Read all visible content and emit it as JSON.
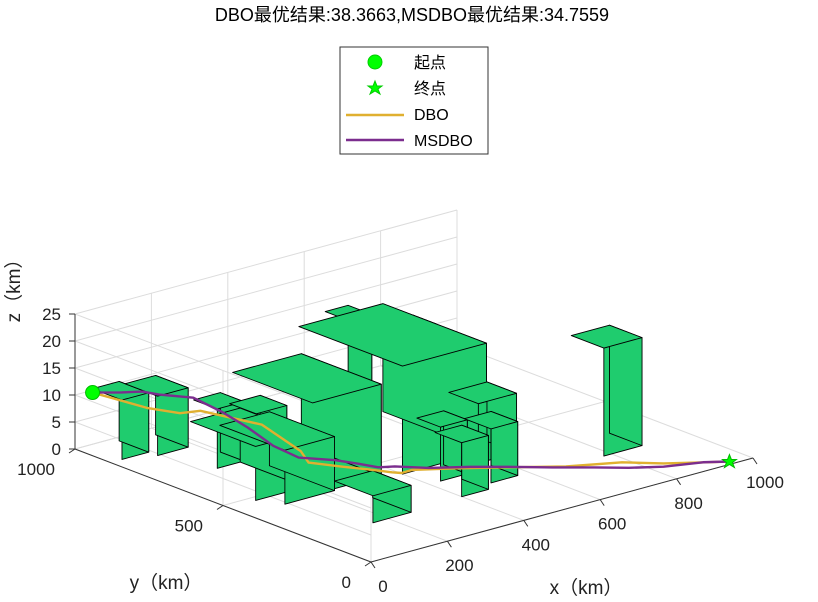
{
  "chart_data": {
    "type": "3d-line",
    "title": "DBO最优结果:38.3663,MSDBO最优结果:34.7559",
    "xlabel": "x（km）",
    "ylabel": "y（km）",
    "zlabel": "z（km）",
    "xlim": [
      0,
      1000
    ],
    "ylim": [
      0,
      1000
    ],
    "zlim": [
      0,
      25
    ],
    "x_ticks": [
      "0",
      "200",
      "400",
      "600",
      "800",
      "1000"
    ],
    "y_ticks": [
      "0",
      "500",
      "1000"
    ],
    "z_ticks": [
      "0",
      "5",
      "10",
      "15",
      "20",
      "25"
    ],
    "grid": true,
    "legend_position": "top-center",
    "legend": [
      "起点",
      "终点",
      "DBO",
      "MSDBO"
    ],
    "colors": {
      "start": "#00ff00",
      "end": "#00ff00",
      "dbo": "#e0b030",
      "msdbo": "#7b2d8e",
      "building": "#1fcc6e"
    },
    "start_point": [
      15,
      960,
      11
    ],
    "end_point": [
      950,
      15,
      0
    ],
    "buildings": [
      {
        "x": [
          30,
          100
        ],
        "y": [
          880,
          980
        ],
        "h": 11
      },
      {
        "x": [
          100,
          180
        ],
        "y": [
          850,
          960
        ],
        "h": 11
      },
      {
        "x": [
          140,
          210
        ],
        "y": [
          700,
          780
        ],
        "h": 11
      },
      {
        "x": [
          180,
          260
        ],
        "y": [
          620,
          710
        ],
        "h": 11
      },
      {
        "x": [
          70,
          200
        ],
        "y": [
          480,
          700
        ],
        "h": 10
      },
      {
        "x": [
          100,
          230
        ],
        "y": [
          420,
          640
        ],
        "h": 10
      },
      {
        "x": [
          180,
          360
        ],
        "y": [
          430,
          700
        ],
        "h": 17
      },
      {
        "x": [
          160,
          260
        ],
        "y": [
          200,
          330
        ],
        "h": 5
      },
      {
        "x": [
          400,
          620
        ],
        "y": [
          410,
          760
        ],
        "h": 20
      },
      {
        "x": [
          500,
          560
        ],
        "y": [
          720,
          800
        ],
        "h": 20
      },
      {
        "x": [
          550,
          620
        ],
        "y": [
          580,
          660
        ],
        "h": 20
      },
      {
        "x": [
          560,
          660
        ],
        "y": [
          360,
          460
        ],
        "h": 11
      },
      {
        "x": [
          430,
          500
        ],
        "y": [
          320,
          400
        ],
        "h": 10
      },
      {
        "x": [
          400,
          470
        ],
        "y": [
          210,
          300
        ],
        "h": 10
      },
      {
        "x": [
          500,
          570
        ],
        "y": [
          240,
          330
        ],
        "h": 10
      },
      {
        "x": [
          780,
          880
        ],
        "y": [
          220,
          330
        ],
        "h": 20
      }
    ],
    "series": [
      {
        "name": "DBO",
        "color": "#e0b030",
        "points": [
          [
            15,
            960,
            11
          ],
          [
            80,
            860,
            9
          ],
          [
            120,
            800,
            8.5
          ],
          [
            150,
            770,
            9
          ],
          [
            210,
            640,
            8
          ],
          [
            230,
            600,
            6
          ],
          [
            250,
            560,
            4
          ],
          [
            255,
            540,
            2.2
          ],
          [
            300,
            480,
            1.8
          ],
          [
            340,
            450,
            1.2
          ],
          [
            380,
            420,
            0.5
          ],
          [
            390,
            400,
            0.6
          ],
          [
            410,
            390,
            1
          ],
          [
            480,
            330,
            1.2
          ],
          [
            560,
            260,
            1.3
          ],
          [
            650,
            180,
            1.4
          ],
          [
            750,
            120,
            1.5
          ],
          [
            820,
            70,
            1
          ],
          [
            900,
            30,
            0.5
          ],
          [
            950,
            15,
            0
          ]
        ]
      },
      {
        "name": "MSDBO",
        "color": "#7b2d8e",
        "points": [
          [
            15,
            960,
            11
          ],
          [
            60,
            920,
            11
          ],
          [
            90,
            890,
            11.2
          ],
          [
            120,
            870,
            10.5
          ],
          [
            170,
            820,
            10
          ],
          [
            200,
            760,
            8
          ],
          [
            220,
            700,
            6
          ],
          [
            240,
            640,
            3.5
          ],
          [
            260,
            580,
            2.2
          ],
          [
            310,
            520,
            2.0
          ],
          [
            340,
            480,
            1.6
          ],
          [
            360,
            440,
            1.4
          ],
          [
            380,
            410,
            1.8
          ],
          [
            430,
            360,
            1.6
          ],
          [
            500,
            310,
            1.5
          ],
          [
            560,
            260,
            1.4
          ],
          [
            630,
            200,
            1.2
          ],
          [
            700,
            150,
            0.9
          ],
          [
            760,
            110,
            0.5
          ],
          [
            820,
            70,
            0.4
          ],
          [
            900,
            40,
            0.3
          ],
          [
            950,
            15,
            0
          ]
        ]
      }
    ]
  }
}
